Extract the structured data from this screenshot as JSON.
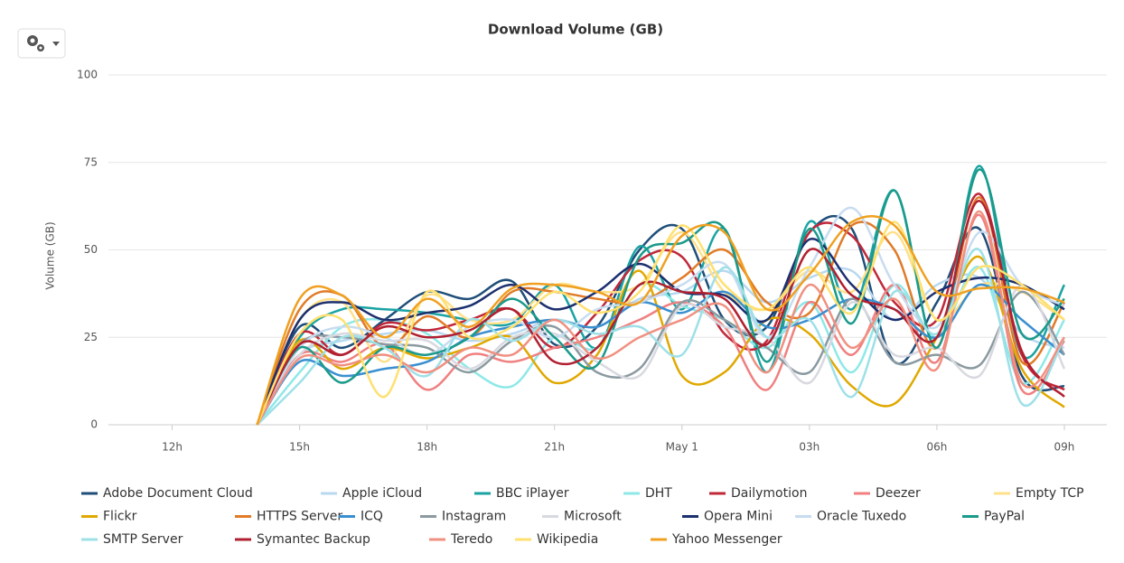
{
  "chart_data": {
    "type": "line",
    "title": "Download Volume (GB)",
    "y_label": "Volume (GB)",
    "x": [
      2,
      3,
      4,
      5,
      6,
      7,
      8,
      9,
      10,
      11,
      12,
      13,
      14,
      15,
      16,
      17,
      18,
      19,
      20,
      21
    ],
    "xlim": [
      -1.5,
      22
    ],
    "xticks": [
      {
        "value": 0,
        "label": "12h"
      },
      {
        "value": 3,
        "label": "15h"
      },
      {
        "value": 6,
        "label": "18h"
      },
      {
        "value": 9,
        "label": "21h"
      },
      {
        "value": 12,
        "label": "May 1"
      },
      {
        "value": 15,
        "label": "03h"
      },
      {
        "value": 18,
        "label": "06h"
      },
      {
        "value": 21,
        "label": "09h"
      }
    ],
    "ylim": [
      0,
      100
    ],
    "yticks": [
      0,
      25,
      50,
      75,
      100
    ],
    "grid": true,
    "series": [
      {
        "name": "Adobe Document Cloud",
        "color": "#1f4e79",
        "values": [
          0,
          28,
          22,
          30,
          38,
          36,
          41,
          23,
          28,
          50,
          56,
          30,
          28,
          55,
          56,
          18,
          35,
          56,
          14,
          11
        ]
      },
      {
        "name": "Apple iCloud",
        "color": "#b8d8f0",
        "values": [
          0,
          20,
          24,
          26,
          27,
          24,
          26,
          30,
          28,
          36,
          38,
          44,
          35,
          42,
          44,
          30,
          40,
          42,
          26,
          22
        ]
      },
      {
        "name": "BBC iPlayer",
        "color": "#1aa3a3",
        "values": [
          0,
          25,
          33,
          33,
          32,
          30,
          29,
          40,
          22,
          51,
          33,
          56,
          15,
          58,
          33,
          67,
          22,
          74,
          20,
          40
        ]
      },
      {
        "name": "DHT",
        "color": "#8ee8e8",
        "values": [
          0,
          15,
          28,
          30,
          26,
          16,
          11,
          25,
          22,
          40,
          34,
          30,
          22,
          35,
          15,
          40,
          25,
          45,
          12,
          30
        ]
      },
      {
        "name": "Dailymotion",
        "color": "#c0283a",
        "values": [
          0,
          26,
          20,
          29,
          27,
          30,
          33,
          22,
          32,
          47,
          48,
          26,
          24,
          55,
          54,
          35,
          30,
          66,
          20,
          10
        ]
      },
      {
        "name": "Deezer",
        "color": "#f08080",
        "values": [
          0,
          20,
          18,
          23,
          10,
          20,
          18,
          22,
          25,
          30,
          35,
          28,
          10,
          35,
          20,
          40,
          18,
          60,
          10,
          24
        ]
      },
      {
        "name": "Empty TCP",
        "color": "#ffe08a",
        "values": [
          0,
          30,
          35,
          18,
          37,
          30,
          30,
          40,
          38,
          40,
          55,
          38,
          33,
          44,
          38,
          55,
          30,
          40,
          38,
          30
        ]
      },
      {
        "name": "Flickr",
        "color": "#e0a800",
        "values": [
          0,
          24,
          16,
          22,
          19,
          22,
          25,
          12,
          20,
          44,
          14,
          15,
          30,
          26,
          11,
          6,
          25,
          48,
          16,
          5
        ]
      },
      {
        "name": "HTTPS Server",
        "color": "#e07b28",
        "values": [
          0,
          33,
          37,
          22,
          31,
          25,
          38,
          38,
          36,
          35,
          42,
          50,
          35,
          32,
          57,
          50,
          22,
          65,
          18,
          35
        ]
      },
      {
        "name": "ICQ",
        "color": "#3a8fd0",
        "values": [
          0,
          18,
          14,
          16,
          18,
          25,
          28,
          30,
          28,
          35,
          32,
          38,
          28,
          30,
          36,
          33,
          25,
          40,
          30,
          20
        ]
      },
      {
        "name": "Instagram",
        "color": "#8a9aa0",
        "values": [
          0,
          23,
          25,
          23,
          22,
          15,
          24,
          28,
          15,
          16,
          35,
          30,
          22,
          15,
          36,
          18,
          20,
          17,
          38,
          20
        ]
      },
      {
        "name": "Microsoft",
        "color": "#d8d8e0",
        "values": [
          0,
          20,
          26,
          24,
          24,
          16,
          25,
          26,
          18,
          14,
          34,
          28,
          25,
          12,
          35,
          20,
          22,
          14,
          40,
          16
        ]
      },
      {
        "name": "Opera Mini",
        "color": "#1c2f6e",
        "values": [
          0,
          30,
          35,
          30,
          32,
          34,
          40,
          33,
          38,
          46,
          38,
          37,
          30,
          53,
          40,
          30,
          38,
          42,
          40,
          33
        ]
      },
      {
        "name": "Oracle Tuxedo",
        "color": "#c8dcf0",
        "values": [
          0,
          22,
          28,
          25,
          20,
          28,
          30,
          25,
          33,
          35,
          40,
          46,
          25,
          45,
          62,
          40,
          28,
          55,
          40,
          34
        ]
      },
      {
        "name": "PayPal",
        "color": "#1a9a8a",
        "values": [
          0,
          22,
          12,
          22,
          20,
          25,
          36,
          25,
          17,
          48,
          52,
          56,
          18,
          56,
          29,
          67,
          22,
          73,
          26,
          36
        ]
      },
      {
        "name": "SMTP Server",
        "color": "#9ee0e8",
        "values": [
          0,
          12,
          25,
          22,
          14,
          30,
          24,
          30,
          26,
          28,
          20,
          45,
          25,
          30,
          8,
          38,
          26,
          50,
          6,
          25
        ]
      },
      {
        "name": "Symantec Backup",
        "color": "#b02030",
        "values": [
          0,
          23,
          20,
          28,
          25,
          27,
          33,
          18,
          22,
          40,
          38,
          36,
          23,
          50,
          37,
          33,
          25,
          64,
          21,
          8
        ]
      },
      {
        "name": "Teredo",
        "color": "#f09080",
        "values": [
          0,
          19,
          17,
          20,
          15,
          22,
          20,
          30,
          19,
          25,
          30,
          34,
          15,
          40,
          22,
          36,
          16,
          61,
          12,
          25
        ]
      },
      {
        "name": "Wikipedia",
        "color": "#ffe070",
        "values": [
          0,
          26,
          30,
          8,
          38,
          25,
          28,
          38,
          32,
          38,
          57,
          40,
          33,
          45,
          32,
          58,
          30,
          45,
          40,
          30
        ]
      },
      {
        "name": "Yahoo Messenger",
        "color": "#f0a020",
        "values": [
          0,
          36,
          37,
          25,
          36,
          28,
          39,
          40,
          38,
          35,
          54,
          55,
          33,
          43,
          58,
          57,
          38,
          39,
          39,
          35
        ]
      }
    ]
  }
}
